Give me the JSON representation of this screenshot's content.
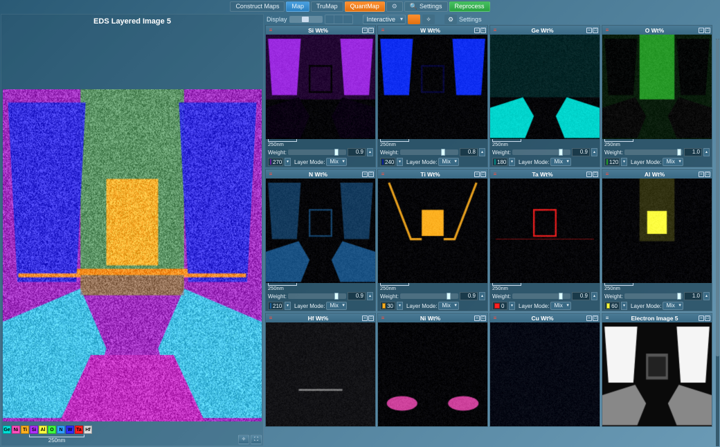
{
  "topbar": {
    "construct": "Construct Maps",
    "map": "Map",
    "trumap": "TruMap",
    "quantmap": "QuantMap",
    "settings": "Settings",
    "reprocess": "Reprocess"
  },
  "left": {
    "title": "EDS Layered Image 5",
    "scale_label": "250nm",
    "element_chips": [
      {
        "label": "Ge",
        "color": "#00e0d8"
      },
      {
        "label": "Ni",
        "color": "#ff50c0"
      },
      {
        "label": "Ti",
        "color": "#ffb020"
      },
      {
        "label": "Si",
        "color": "#b030ff"
      },
      {
        "label": "Al",
        "color": "#ffff40"
      },
      {
        "label": "O",
        "color": "#40ff40"
      },
      {
        "label": "N",
        "color": "#30a0ff"
      },
      {
        "label": "W",
        "color": "#3030ff"
      },
      {
        "label": "Ta",
        "color": "#ff2020"
      },
      {
        "label": "Hf",
        "color": "#e0e0e0"
      }
    ]
  },
  "toolbar": {
    "display": "Display",
    "interactive": "Interactive",
    "settings": "Settings"
  },
  "common": {
    "weight_label": "Weight:",
    "layer_mode_label": "Layer Mode:",
    "mix": "Mix",
    "scale": "250nm"
  },
  "maps": [
    {
      "title": "Si Wt%",
      "color": "#b030ff",
      "hue": "270",
      "weight": "0.9",
      "bg": "si"
    },
    {
      "title": "W Wt%",
      "color": "#1030ff",
      "hue": "240",
      "weight": "0.8",
      "bg": "w"
    },
    {
      "title": "Ge Wt%",
      "color": "#00e0d8",
      "hue": "180",
      "weight": "0.9",
      "bg": "ge"
    },
    {
      "title": "O Wt%",
      "color": "#40ff40",
      "hue": "120",
      "weight": "1.0",
      "bg": "o"
    },
    {
      "title": "N Wt%",
      "color": "#30a0ff",
      "hue": "210",
      "weight": "0.9",
      "bg": "n"
    },
    {
      "title": "Ti Wt%",
      "color": "#ffb020",
      "hue": "30",
      "weight": "0.9",
      "bg": "ti"
    },
    {
      "title": "Ta Wt%",
      "color": "#ff2020",
      "hue": "0",
      "weight": "0.9",
      "bg": "ta"
    },
    {
      "title": "Al Wt%",
      "color": "#ffff40",
      "hue": "60",
      "weight": "1.0",
      "bg": "al"
    },
    {
      "title": "Hf Wt%",
      "color": "#e0e0e0",
      "hue": "",
      "weight": "",
      "bg": "hf"
    },
    {
      "title": "Ni Wt%",
      "color": "#ff50c0",
      "hue": "",
      "weight": "",
      "bg": "ni"
    },
    {
      "title": "Cu Wt%",
      "color": "#1050ff",
      "hue": "",
      "weight": "",
      "bg": "cu"
    },
    {
      "title": "Electron Image 5",
      "color": "#ffffff",
      "hue": "",
      "weight": "",
      "bg": "ei"
    }
  ]
}
